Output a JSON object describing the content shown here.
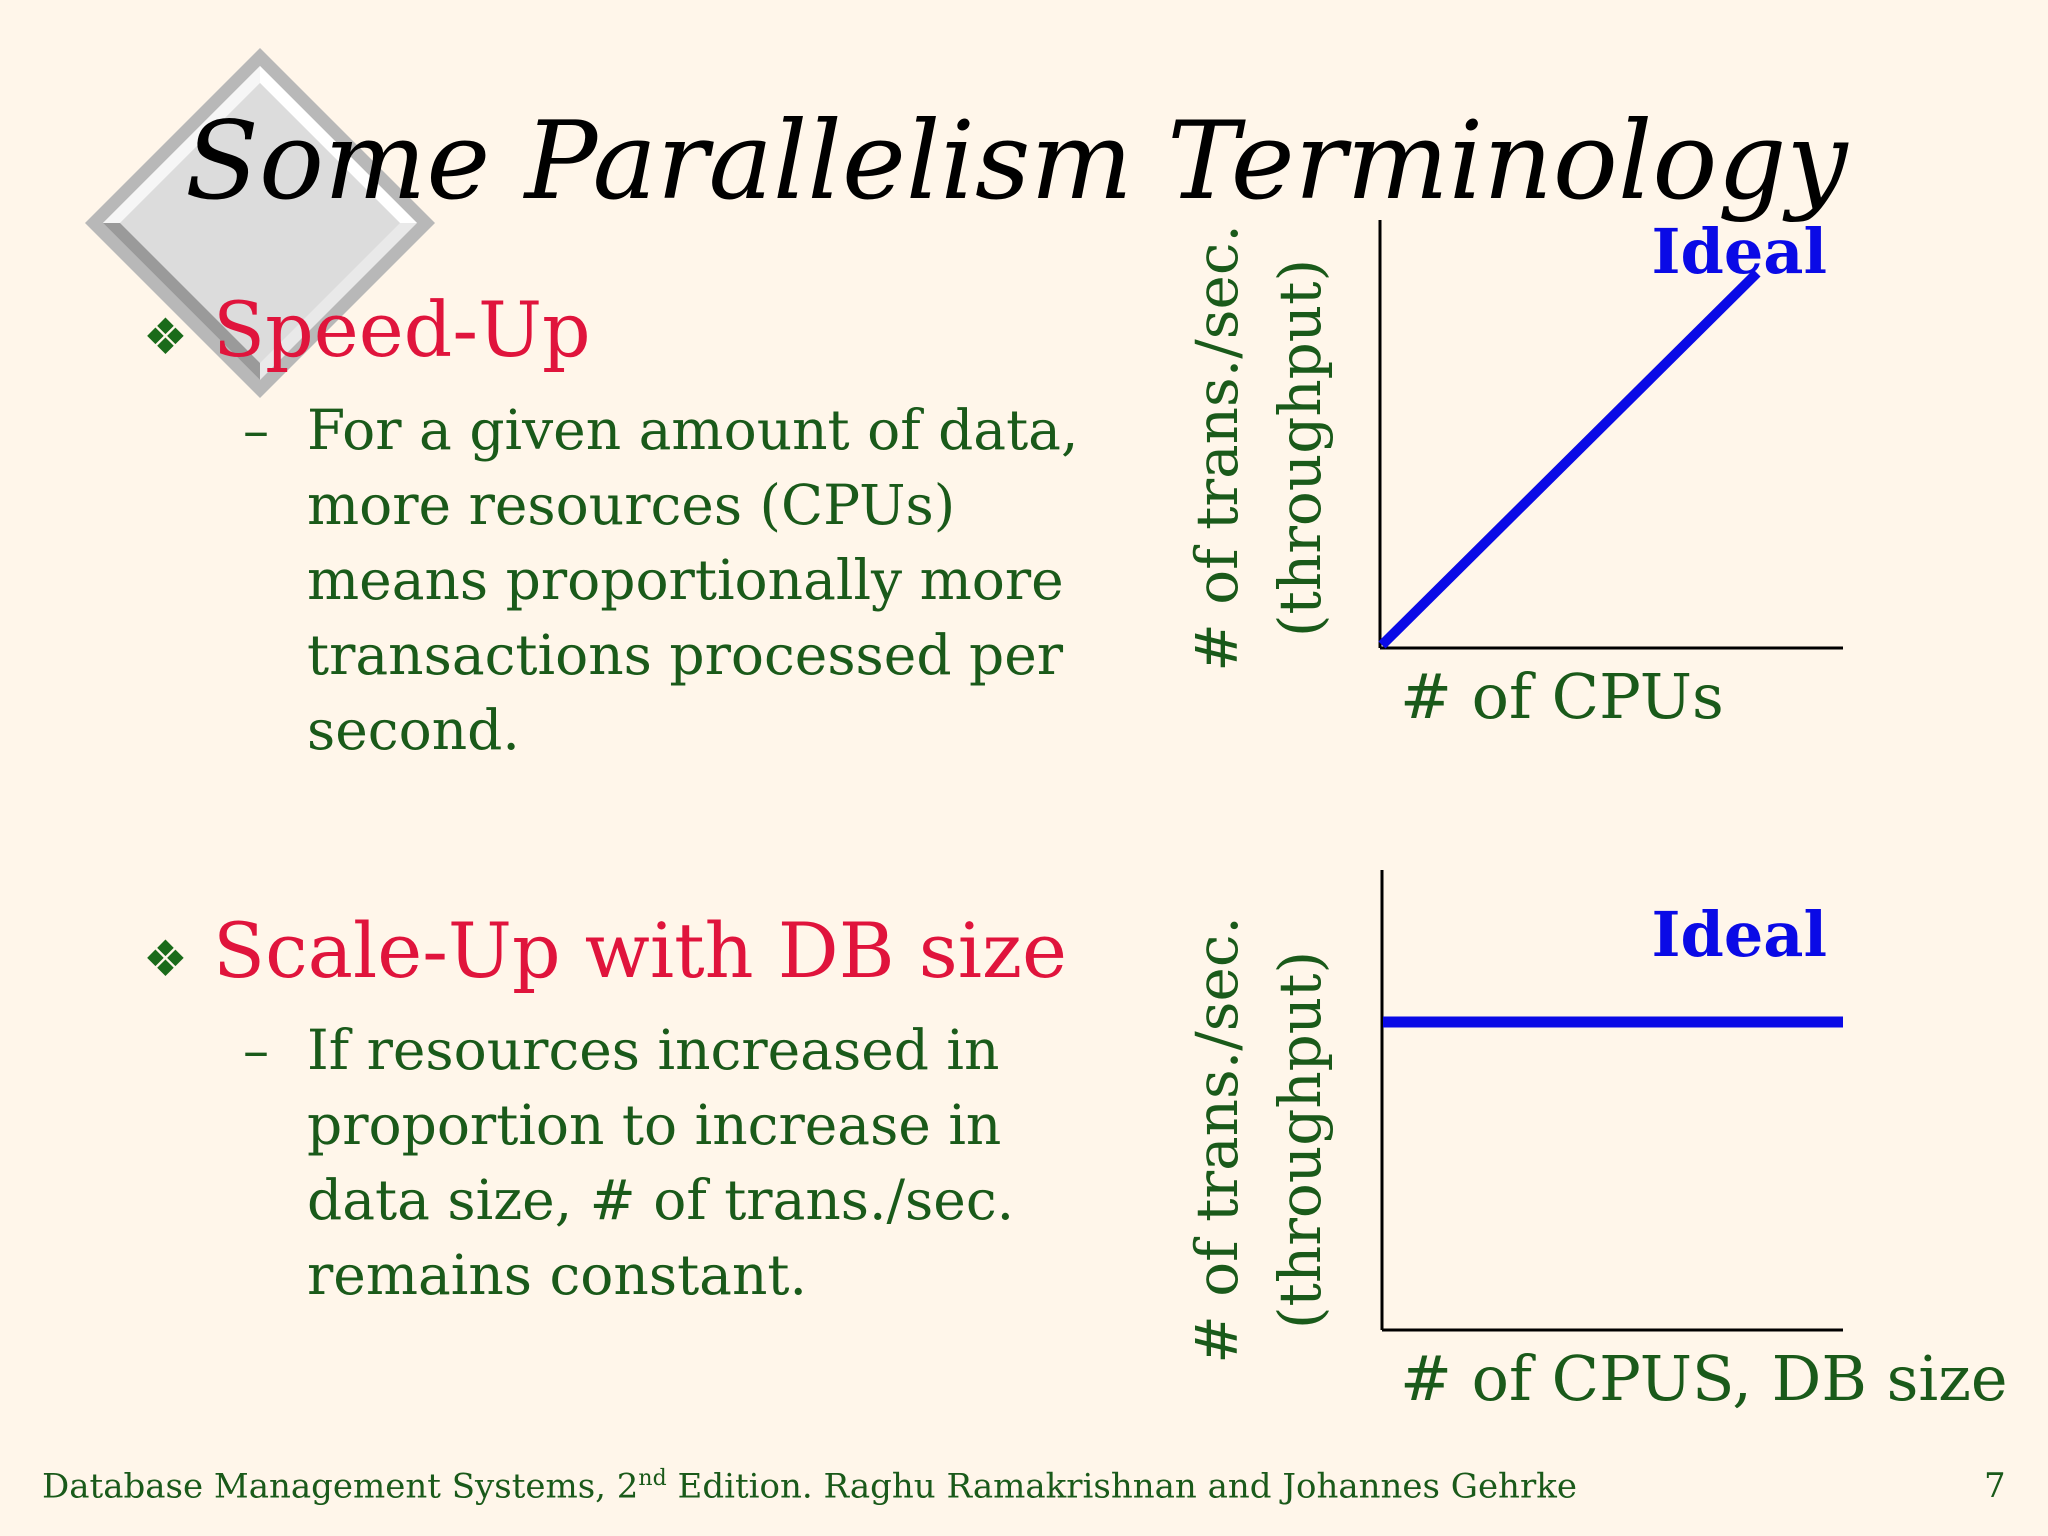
{
  "slide": {
    "title": "Some Parallelism Terminology",
    "bullets": [
      {
        "glyph": "❖",
        "heading": "Speed-Up",
        "sub_dash": "–",
        "sub_lines": [
          "For a given amount of data,",
          "more resources (CPUs)",
          "means proportionally more",
          "transactions processed per",
          "second."
        ]
      },
      {
        "glyph": "❖",
        "heading": "Scale-Up with DB size",
        "sub_dash": "–",
        "sub_lines": [
          "If resources increased in",
          "proportion to increase in",
          "data size, # of trans./sec.",
          "remains constant."
        ]
      }
    ],
    "footer": {
      "credit_prefix": "Database Management Systems, 2",
      "credit_sup": "nd",
      "credit_suffix": " Edition. Raghu Ramakrishnan and Johannes Gehrke",
      "page_number": "7"
    }
  },
  "diagrams": [
    {
      "name": "speed-up-graph",
      "ylabel_line1": "# of trans./sec.",
      "ylabel_line2": "(throughput)",
      "xlabel": "# of CPUs",
      "curve_label": "Ideal",
      "curve": "linear-increasing",
      "line_color": "#0a0ae6",
      "label_color": "#0a0ae6"
    },
    {
      "name": "scale-up-graph",
      "ylabel_line1": "# of trans./sec.",
      "ylabel_line2": "(throughput)",
      "xlabel": "# of CPUS, DB size",
      "curve_label": "Ideal",
      "curve": "constant",
      "line_color": "#0a0ae6",
      "label_color": "#0a0ae6"
    }
  ],
  "colors": {
    "background": "#fff6ea",
    "title": "#000000",
    "heading": "#e0143c",
    "body": "#1a5a1a",
    "accent": "#0a0ae6"
  }
}
